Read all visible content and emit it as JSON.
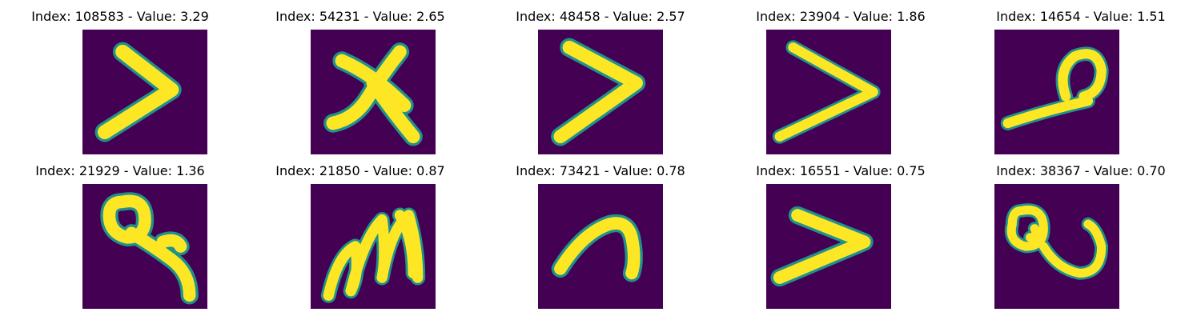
{
  "panels": [
    {
      "title": "Index: 108583 - Value: 3.29",
      "glyph": "gt-thick-icon"
    },
    {
      "title": "Index: 54231 - Value: 2.65",
      "glyph": "x-cross-icon"
    },
    {
      "title": "Index: 48458 - Value: 2.57",
      "glyph": "gt-thick-icon"
    },
    {
      "title": "Index: 23904 - Value: 1.86",
      "glyph": "gt-thin-icon"
    },
    {
      "title": "Index: 14654 - Value: 1.51",
      "glyph": "loop-stroke-icon"
    },
    {
      "title": "Index: 21929 - Value: 1.36",
      "glyph": "key-loop-icon"
    },
    {
      "title": "Index: 21850 - Value: 0.87",
      "glyph": "m-scribble-icon"
    },
    {
      "title": "Index: 73421 - Value: 0.78",
      "glyph": "arch-icon"
    },
    {
      "title": "Index: 16551 - Value: 0.75",
      "glyph": "gt-thick-icon"
    },
    {
      "title": "Index: 38367 - Value: 0.70",
      "glyph": "loops-hook-icon"
    }
  ],
  "colors": {
    "background": "#440154",
    "stroke": "#fde725",
    "edge": "#21918c"
  }
}
